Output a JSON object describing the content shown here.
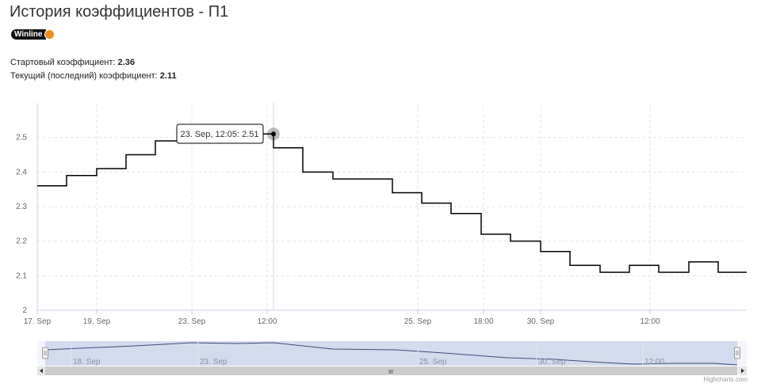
{
  "page": {
    "title": "История коэффициентов - П1",
    "bookmaker": "Winline",
    "start_label": "Стартовый коэффициент: ",
    "start_value": "2.36",
    "current_label": "Текущий (последний) коэффициент: ",
    "current_value": "2.11"
  },
  "colors": {
    "line": "#000000",
    "badge_bg": "#111111",
    "badge_dot": "#f28c1b",
    "navigator_mask": "#ccd6eb",
    "navigator_line": "#3f4d7a"
  },
  "chart_data": {
    "type": "line",
    "step": true,
    "y_ticks": [
      "2",
      "2.1",
      "2.2",
      "2.3",
      "2.4",
      "2.5"
    ],
    "ylim": [
      2,
      2.6
    ],
    "x_tick_labels": [
      "17. Sep",
      "19. Sep",
      "23. Sep",
      "12:00",
      "25. Sep",
      "18:00",
      "30. Sep",
      "12:00"
    ],
    "grid": true,
    "series": [
      {
        "values": [
          2.36,
          2.39,
          2.41,
          2.45,
          2.49,
          2.51,
          2.47,
          2.4,
          2.38,
          2.34,
          2.31,
          2.28,
          2.22,
          2.2,
          2.17,
          2.13,
          2.11,
          2.13,
          2.11,
          2.14,
          2.11
        ]
      }
    ],
    "tooltip": "23. Sep, 12:05: 2.51",
    "navigator": {
      "labels": [
        "18. Sep",
        "23. Sep",
        "25. Sep",
        "30. Sep",
        "12:00"
      ],
      "scroll_grip": "III"
    },
    "credits": "Highcharts.com"
  }
}
